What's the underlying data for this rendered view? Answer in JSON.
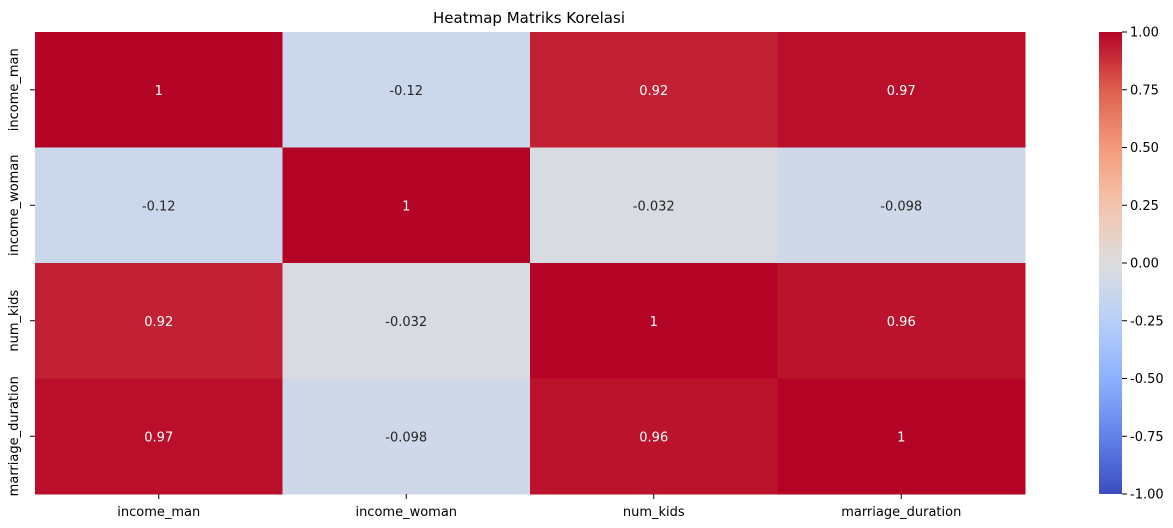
{
  "chart_data": {
    "type": "heatmap",
    "title": "Heatmap Matriks Korelasi",
    "x_categories": [
      "income_man",
      "income_woman",
      "num_kids",
      "marriage_duration"
    ],
    "y_categories": [
      "income_man",
      "income_woman",
      "num_kids",
      "marriage_duration"
    ],
    "values": [
      [
        1,
        -0.12,
        0.92,
        0.97
      ],
      [
        -0.12,
        1,
        -0.032,
        -0.098
      ],
      [
        0.92,
        -0.032,
        1,
        0.96
      ],
      [
        0.97,
        -0.098,
        0.96,
        1
      ]
    ],
    "annotations": [
      [
        "1",
        "-0.12",
        "0.92",
        "0.97"
      ],
      [
        "-0.12",
        "1",
        "-0.032",
        "-0.098"
      ],
      [
        "0.92",
        "-0.032",
        "1",
        "0.96"
      ],
      [
        "0.97",
        "-0.098",
        "0.96",
        "1"
      ]
    ],
    "colormap": "coolwarm",
    "vmin": -1,
    "vmax": 1,
    "colorbar_ticks": [
      -1.0,
      -0.75,
      -0.5,
      -0.25,
      0.0,
      0.25,
      0.5,
      0.75,
      1.0
    ],
    "colorbar_tick_labels": [
      "-1.00",
      "-0.75",
      "-0.50",
      "-0.25",
      "0.00",
      "0.25",
      "0.50",
      "0.75",
      "1.00"
    ],
    "colors": {
      "text_dark": "#262626",
      "text_light": "#ffffff",
      "axis": "#000000"
    }
  }
}
